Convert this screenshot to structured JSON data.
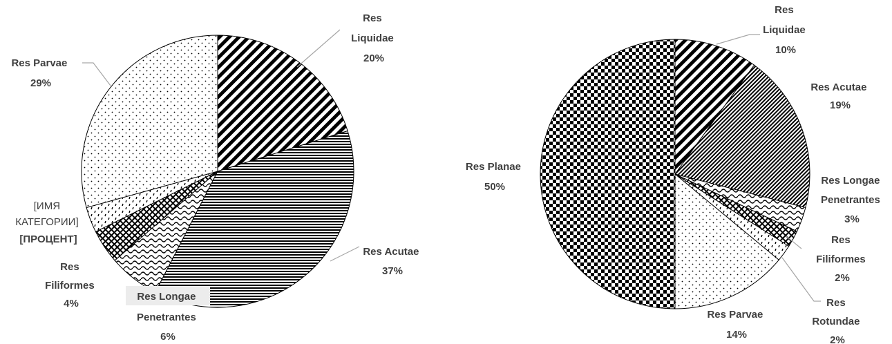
{
  "chart_data": [
    {
      "type": "pie",
      "slices": [
        {
          "label": "Res Liquidae",
          "value": 20,
          "percent_label": "20%",
          "pattern": "diag"
        },
        {
          "label": "Res Acutae",
          "value": 37,
          "percent_label": "37%",
          "pattern": "hlines"
        },
        {
          "label": "Res Longae Penetrantes",
          "value": 6,
          "percent_label": "6%",
          "pattern": "wave"
        },
        {
          "label": "Res Filiformes",
          "value": 4,
          "percent_label": "4%",
          "pattern": "grid"
        },
        {
          "label": "[ИМЯ КАТЕГОРИИ]",
          "value": 3,
          "percent_label": "[ПРОЦЕНТ]",
          "pattern": "dash"
        },
        {
          "label": "Res Parvae",
          "value": 29,
          "percent_label": "29%",
          "pattern": "dots"
        }
      ]
    },
    {
      "type": "pie",
      "slices": [
        {
          "label": "Res Liquidae",
          "value": 10,
          "percent_label": "10%",
          "pattern": "diag"
        },
        {
          "label": "Res Acutae",
          "value": 19,
          "percent_label": "19%",
          "pattern": "diagfine"
        },
        {
          "label": "Res Longae Penetrantes",
          "value": 3,
          "percent_label": "3%",
          "pattern": "wave"
        },
        {
          "label": "Res Filiformes",
          "value": 2,
          "percent_label": "2%",
          "pattern": "grid"
        },
        {
          "label": "Res Rotundae",
          "value": 2,
          "percent_label": "2%",
          "pattern": "dash"
        },
        {
          "label": "Res Parvae",
          "value": 14,
          "percent_label": "14%",
          "pattern": "dots"
        },
        {
          "label": "Res Planae",
          "value": 50,
          "percent_label": "50%",
          "pattern": "checker"
        }
      ]
    }
  ]
}
